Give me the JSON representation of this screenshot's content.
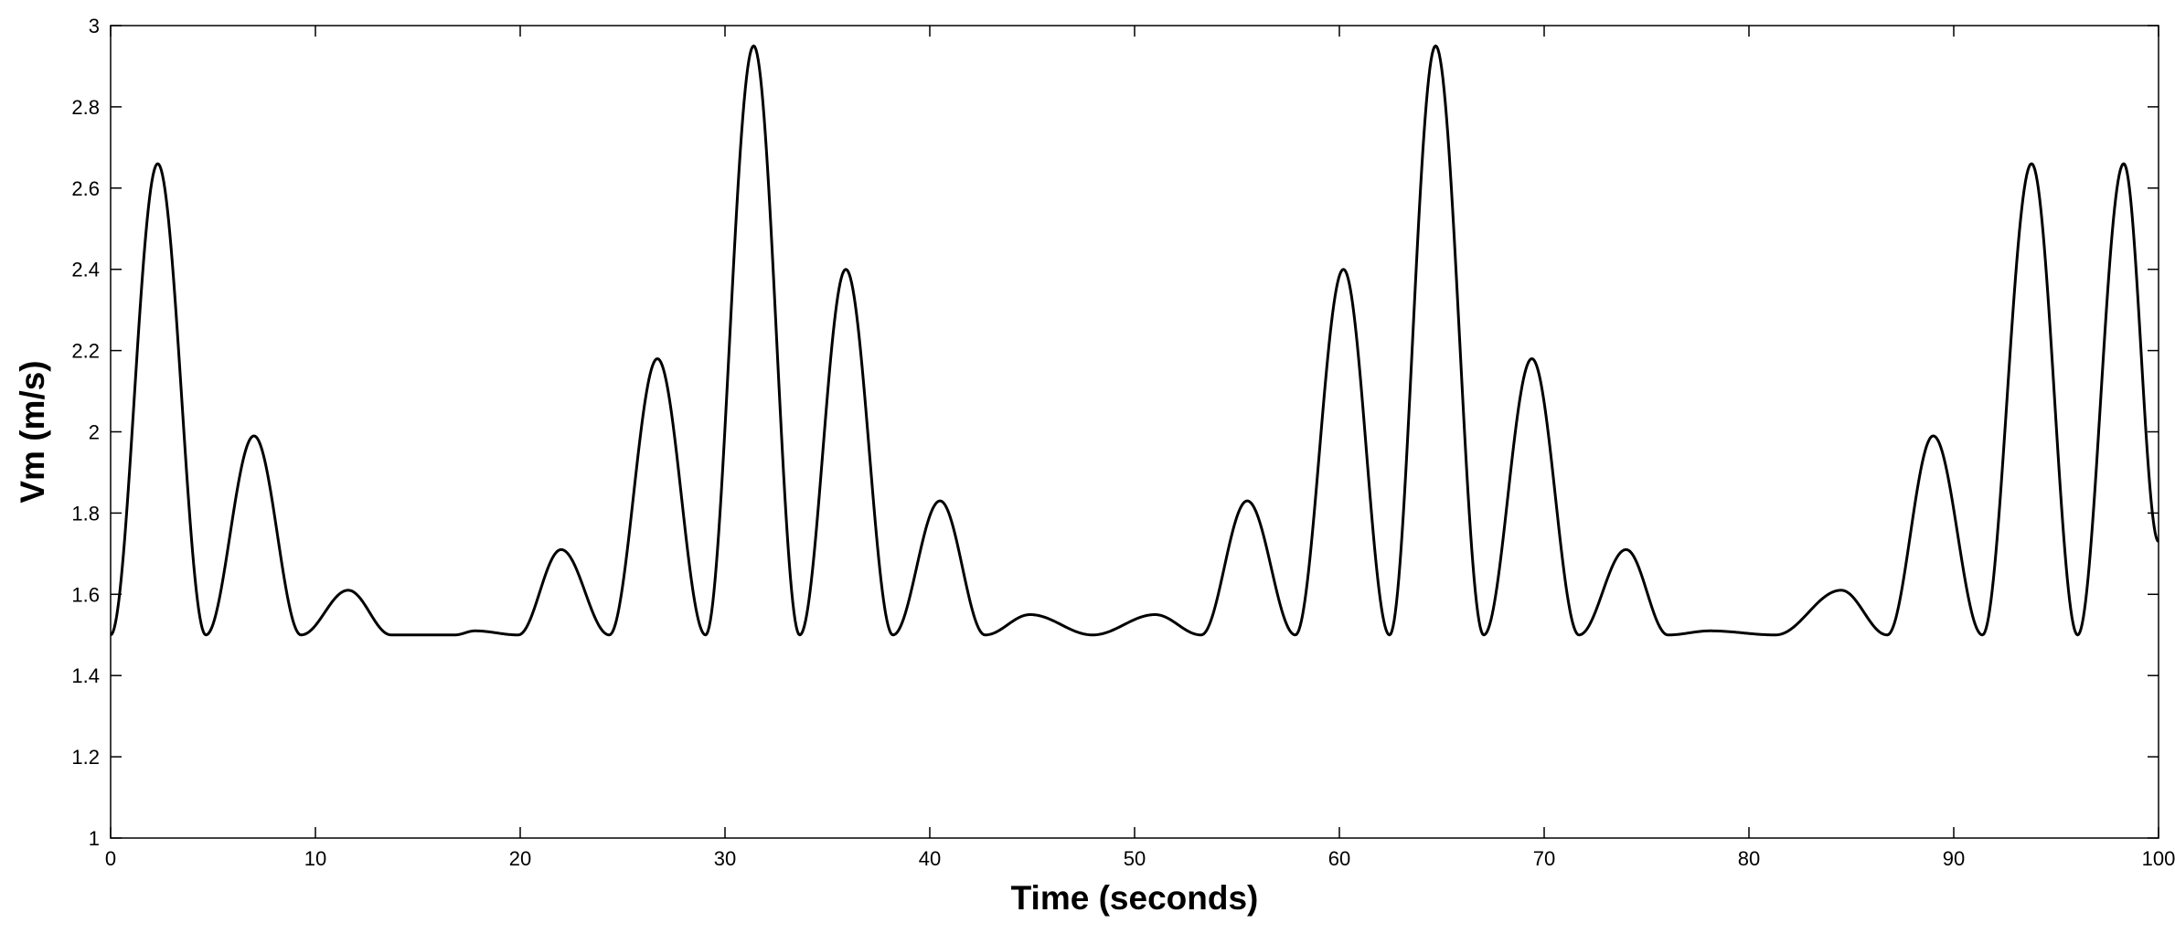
{
  "chart_data": {
    "type": "line",
    "title": "",
    "xlabel": "Time (seconds)",
    "ylabel": "Vm (m/s)",
    "xlim": [
      0,
      100
    ],
    "ylim": [
      1,
      3
    ],
    "x_ticks": [
      0,
      10,
      20,
      30,
      40,
      50,
      60,
      70,
      80,
      90,
      100
    ],
    "x_tick_labels": [
      "0",
      "10",
      "20",
      "30",
      "40",
      "50",
      "60",
      "70",
      "80",
      "90",
      "100"
    ],
    "y_ticks": [
      1,
      1.2,
      1.4,
      1.6,
      1.8,
      2,
      2.2,
      2.4,
      2.6,
      2.8,
      3
    ],
    "y_tick_labels": [
      "1",
      "1.2",
      "1.4",
      "1.6",
      "1.8",
      "2",
      "2.2",
      "2.4",
      "2.6",
      "2.8",
      "3"
    ],
    "grid": false,
    "legend": "none",
    "line_color": "#000000",
    "series": [
      {
        "baseline": 1.5,
        "peaks": [
          {
            "x": 2.3,
            "y": 2.66
          },
          {
            "x": 7.0,
            "y": 1.99
          },
          {
            "x": 11.6,
            "y": 1.61
          },
          {
            "x": 15.8,
            "y": 1.5
          },
          {
            "x": 17.8,
            "y": 1.51
          },
          {
            "x": 22.0,
            "y": 1.71
          },
          {
            "x": 26.7,
            "y": 2.18
          },
          {
            "x": 31.4,
            "y": 2.95
          },
          {
            "x": 35.9,
            "y": 2.4
          },
          {
            "x": 40.5,
            "y": 1.83
          },
          {
            "x": 44.9,
            "y": 1.55
          },
          {
            "x": 51.0,
            "y": 1.55
          },
          {
            "x": 55.5,
            "y": 1.83
          },
          {
            "x": 60.2,
            "y": 2.4
          },
          {
            "x": 64.7,
            "y": 2.95
          },
          {
            "x": 69.4,
            "y": 2.18
          },
          {
            "x": 74.0,
            "y": 1.71
          },
          {
            "x": 78.1,
            "y": 1.51
          },
          {
            "x": 84.5,
            "y": 1.61
          },
          {
            "x": 89.0,
            "y": 1.99
          },
          {
            "x": 93.8,
            "y": 2.66
          },
          {
            "x": 98.3,
            "y": 2.66
          }
        ],
        "points": [
          {
            "x": 0.0,
            "y": 1.5
          },
          {
            "x": 100.0,
            "y": 1.73
          }
        ]
      }
    ]
  }
}
